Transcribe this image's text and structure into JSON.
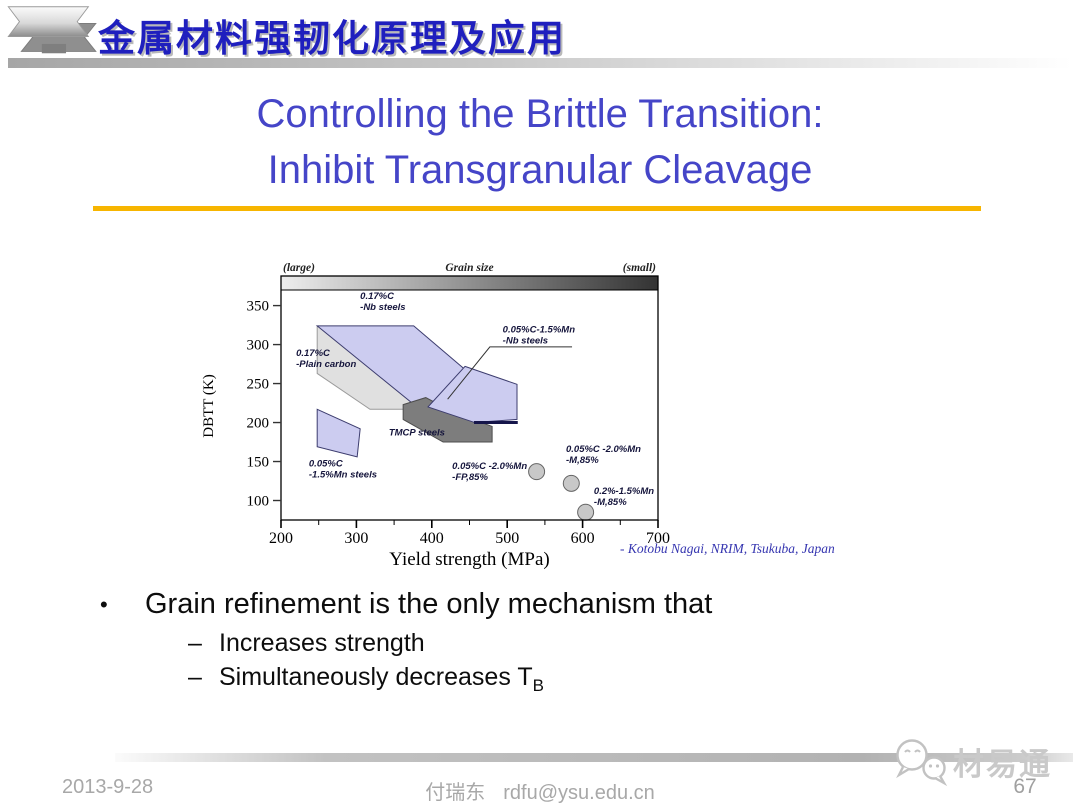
{
  "header": {
    "course_title": "金属材料强韧化原理及应用"
  },
  "slide": {
    "title_line1": "Controlling the Brittle Transition:",
    "title_line2": "Inhibit Transgranular Cleavage",
    "title_color": "#4545c8",
    "rule_color": "#f7b500"
  },
  "chart_data": {
    "type": "scatter",
    "top_axis": {
      "label": "Grain size",
      "left_note": "(large)",
      "right_note": "(small)"
    },
    "xlabel": "Yield strength (MPa)",
    "ylabel": "DBTT (K)",
    "xlim": [
      200,
      700
    ],
    "ylim": [
      75,
      370
    ],
    "xticks": [
      200,
      300,
      400,
      500,
      600,
      700
    ],
    "xticks_minor": [
      250,
      350,
      450,
      550,
      650
    ],
    "yticks": [
      100,
      150,
      200,
      250,
      300,
      350
    ],
    "regions": [
      {
        "name": "plain-carbon-017",
        "fill": "#e0e0e0",
        "stroke": "#9a9a9a",
        "points": [
          [
            248,
            323
          ],
          [
            355,
            323
          ],
          [
            431,
            259
          ],
          [
            431,
            217
          ],
          [
            318,
            217
          ],
          [
            248,
            263
          ]
        ]
      },
      {
        "name": "nb-steels-017",
        "fill": "#ccccf0",
        "stroke": "#3c3c6e",
        "points": [
          [
            248,
            324
          ],
          [
            376,
            324
          ],
          [
            506,
            217
          ],
          [
            384,
            217
          ]
        ]
      },
      {
        "name": "tmcp-steels",
        "fill": "#7d7d7d",
        "stroke": "#4d4d4d",
        "points": [
          [
            362,
            223
          ],
          [
            392,
            232
          ],
          [
            427,
            214
          ],
          [
            480,
            195
          ],
          [
            480,
            175
          ],
          [
            415,
            175
          ],
          [
            362,
            204
          ]
        ]
      },
      {
        "name": "nb-steels-005-15mn",
        "fill": "#ccccf0",
        "stroke": "#3c3c6e",
        "points": [
          [
            444,
            272
          ],
          [
            513,
            249
          ],
          [
            513,
            204
          ],
          [
            457,
            200
          ],
          [
            395,
            220
          ]
        ]
      },
      {
        "name": "mn-steels-005-15",
        "fill": "#ccccf0",
        "stroke": "#3c3c6e",
        "points": [
          [
            248,
            217
          ],
          [
            305,
            192
          ],
          [
            301,
            156
          ],
          [
            248,
            169
          ]
        ]
      }
    ],
    "pointer_line": [
      [
        586,
        297
      ],
      [
        477,
        297
      ],
      [
        421,
        230
      ]
    ],
    "highlight_edge": {
      "x1": 456,
      "y1": 200,
      "x2": 514,
      "y2": 200
    },
    "points": [
      {
        "x": 539,
        "y": 137
      },
      {
        "x": 585,
        "y": 122
      },
      {
        "x": 604,
        "y": 85
      }
    ],
    "labels": [
      {
        "x": 305,
        "y": 366,
        "lines": [
          "0.17%C",
          "-Nb steels"
        ]
      },
      {
        "x": 220,
        "y": 293,
        "lines": [
          "0.17%C",
          "-Plain carbon"
        ]
      },
      {
        "x": 494,
        "y": 323,
        "lines": [
          "0.05%C-1.5%Mn",
          "-Nb steels"
        ]
      },
      {
        "x": 343,
        "y": 191,
        "lines": [
          "TMCP steels"
        ]
      },
      {
        "x": 237,
        "y": 151,
        "lines": [
          "0.05%C",
          "-1.5%Mn steels"
        ]
      },
      {
        "x": 427,
        "y": 148,
        "lines": [
          "0.05%C -2.0%Mn",
          "-FP,85%"
        ]
      },
      {
        "x": 578,
        "y": 170,
        "lines": [
          "0.05%C -2.0%Mn",
          "-M,85%"
        ]
      },
      {
        "x": 615,
        "y": 116,
        "lines": [
          "0.2%-1.5%Mn",
          "-M,85%"
        ]
      }
    ],
    "attribution": "- Kotobu Nagai, NRIM, Tsukuba, Japan"
  },
  "bullets": {
    "marker": "•",
    "dash": "–",
    "main": "Grain refinement is the only mechanism that",
    "sub": [
      {
        "text": "Increases strength"
      },
      {
        "text": "Simultaneously decreases T",
        "subscript": "B"
      }
    ]
  },
  "footer": {
    "date": "2013-9-28",
    "author": "付瑞东",
    "email": "rdfu@ysu.edu.cn",
    "page": "67"
  },
  "watermark": {
    "text": "材易通"
  }
}
